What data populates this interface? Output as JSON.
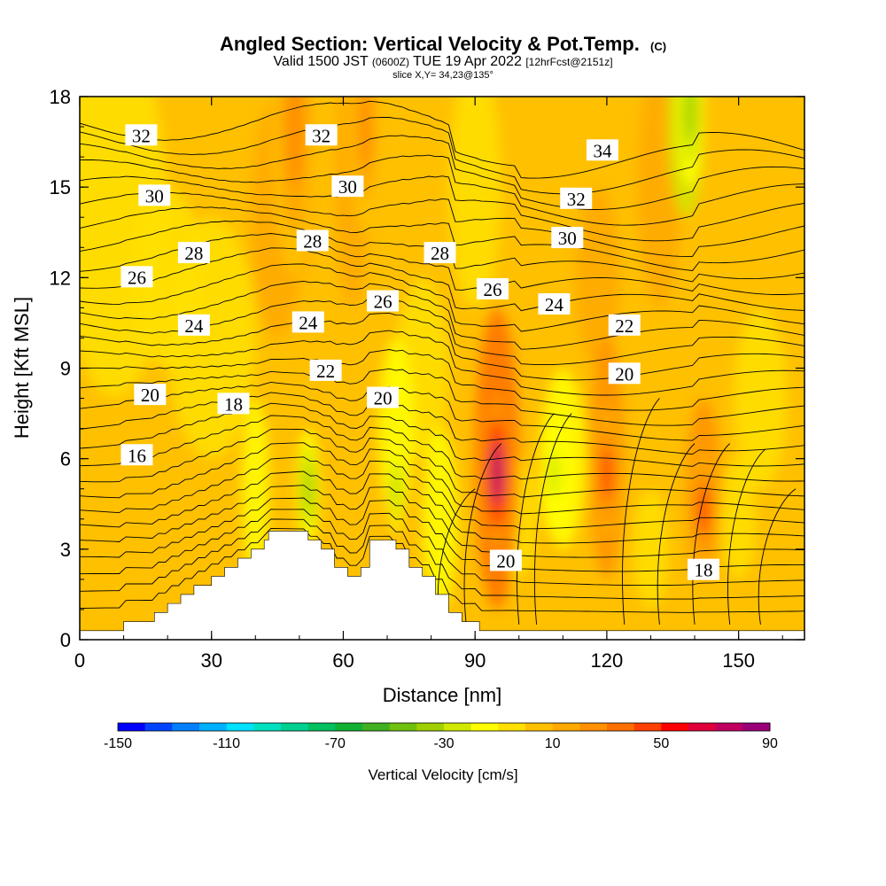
{
  "title": {
    "main": "Angled Section: Vertical Velocity & Pot.Temp.",
    "main_unit": "(C)",
    "valid_a": "Valid 1500 JST",
    "valid_b": "(0600Z)",
    "valid_c": "TUE 19 Apr 2022",
    "valid_d": "[12hrFcst@2151z]",
    "slice": "slice X,Y= 34,23@135°"
  },
  "chart_data": {
    "type": "heatmap",
    "xlabel": "Distance [nm]",
    "ylabel": "Height [Kft MSL]",
    "xlim": [
      0,
      165
    ],
    "ylim": [
      0,
      18
    ],
    "xticks": [
      "0",
      "30",
      "60",
      "90",
      "120",
      "150"
    ],
    "yticks": [
      "0",
      "3",
      "6",
      "9",
      "12",
      "15",
      "18"
    ],
    "colorbar": {
      "label": "Vertical Velocity [cm/s]",
      "range": [
        -150,
        90
      ],
      "step": 10,
      "tick_labels": [
        "-150",
        "-110",
        "-70",
        "-30",
        "10",
        "50",
        "90"
      ],
      "colors": [
        "#0000ff",
        "#0044ff",
        "#0080ff",
        "#00b0ff",
        "#00e0ff",
        "#00e0c0",
        "#00d090",
        "#00c060",
        "#10b030",
        "#40b020",
        "#70c010",
        "#a0d000",
        "#d0e800",
        "#ffff00",
        "#ffe000",
        "#ffc000",
        "#ffa800",
        "#ff9000",
        "#ff7000",
        "#ff4000",
        "#ff0000",
        "#e0003c",
        "#c00060",
        "#9a0078",
        "#7a0090"
      ]
    },
    "velocity_cores": [
      {
        "x": 95,
        "y": 5.5,
        "w": 3.5,
        "h": 2.6,
        "value": 70
      },
      {
        "x": 120,
        "y": 5.5,
        "w": 3.0,
        "h": 2.2,
        "value": 45
      },
      {
        "x": 142,
        "y": 4.3,
        "w": 3.0,
        "h": 2.0,
        "value": 45
      },
      {
        "x": 49,
        "y": 17.0,
        "w": 5.0,
        "h": 5.0,
        "value": 20
      },
      {
        "x": 65,
        "y": 17.0,
        "w": 3.5,
        "h": 3.5,
        "value": 20
      },
      {
        "x": 52,
        "y": 5.0,
        "w": 2.5,
        "h": 2.0,
        "value": -35
      },
      {
        "x": 72,
        "y": 5.0,
        "w": 1.5,
        "h": 1.5,
        "value": -40
      },
      {
        "x": 139,
        "y": 17.5,
        "w": 3.0,
        "h": 2.5,
        "value": -35
      },
      {
        "x": 108,
        "y": 5.5,
        "w": 3.0,
        "h": 2.0,
        "value": -30
      }
    ],
    "terrain": [
      [
        0,
        0.3
      ],
      [
        10,
        0.3
      ],
      [
        10,
        0.6
      ],
      [
        17,
        0.6
      ],
      [
        17,
        0.9
      ],
      [
        20,
        0.9
      ],
      [
        20,
        1.2
      ],
      [
        23,
        1.2
      ],
      [
        23,
        1.5
      ],
      [
        26,
        1.5
      ],
      [
        26,
        1.8
      ],
      [
        30,
        1.8
      ],
      [
        30,
        2.1
      ],
      [
        33,
        2.1
      ],
      [
        33,
        2.4
      ],
      [
        36,
        2.4
      ],
      [
        36,
        2.7
      ],
      [
        39,
        2.7
      ],
      [
        39,
        3.0
      ],
      [
        42,
        3.0
      ],
      [
        42,
        3.3
      ],
      [
        43,
        3.3
      ],
      [
        43,
        3.6
      ],
      [
        52,
        3.6
      ],
      [
        52,
        3.3
      ],
      [
        55,
        3.3
      ],
      [
        55,
        3.0
      ],
      [
        58,
        3.0
      ],
      [
        58,
        2.4
      ],
      [
        61,
        2.4
      ],
      [
        61,
        2.1
      ],
      [
        64,
        2.1
      ],
      [
        64,
        2.4
      ],
      [
        66,
        2.4
      ],
      [
        66,
        3.3
      ],
      [
        72,
        3.3
      ],
      [
        72,
        3.0
      ],
      [
        75,
        3.0
      ],
      [
        75,
        2.4
      ],
      [
        78,
        2.4
      ],
      [
        78,
        2.1
      ],
      [
        81,
        2.1
      ],
      [
        81,
        1.5
      ],
      [
        84,
        1.5
      ],
      [
        84,
        0.9
      ],
      [
        87,
        0.9
      ],
      [
        87,
        0.6
      ],
      [
        91,
        0.6
      ],
      [
        91,
        0.3
      ],
      [
        165,
        0.3
      ]
    ],
    "isentropes": [
      {
        "theta": 16,
        "y0": 5.6,
        "label": {
          "x": 13,
          "y": 6.1
        }
      },
      {
        "theta": 18,
        "y0": 7.0,
        "label": {
          "x": 35,
          "y": 7.8
        }
      },
      {
        "theta": 20,
        "y0": 8.3,
        "label": {
          "x": 16,
          "y": 8.1
        }
      },
      {
        "theta": 20,
        "label": {
          "x": 69,
          "y": 8.0
        }
      },
      {
        "theta": 20,
        "label": {
          "x": 124,
          "y": 8.8
        }
      },
      {
        "theta": 20,
        "label": {
          "x": 97,
          "y": 2.6
        }
      },
      {
        "theta": 18,
        "label": {
          "x": 142,
          "y": 2.3
        }
      },
      {
        "theta": 22,
        "y0": 9.6,
        "label": {
          "x": 56,
          "y": 8.9
        }
      },
      {
        "theta": 22,
        "label": {
          "x": 124,
          "y": 10.4
        }
      },
      {
        "theta": 24,
        "y0": 10.8,
        "label": {
          "x": 26,
          "y": 10.4
        }
      },
      {
        "theta": 24,
        "label": {
          "x": 52,
          "y": 10.5
        }
      },
      {
        "theta": 24,
        "label": {
          "x": 108,
          "y": 11.1
        }
      },
      {
        "theta": 26,
        "y0": 12.1,
        "label": {
          "x": 13,
          "y": 12.0
        }
      },
      {
        "theta": 26,
        "label": {
          "x": 69,
          "y": 11.2
        }
      },
      {
        "theta": 26,
        "label": {
          "x": 94,
          "y": 11.6
        }
      },
      {
        "theta": 28,
        "y0": 13.2,
        "label": {
          "x": 26,
          "y": 12.8
        }
      },
      {
        "theta": 28,
        "label": {
          "x": 53,
          "y": 13.2
        }
      },
      {
        "theta": 28,
        "label": {
          "x": 82,
          "y": 12.8
        }
      },
      {
        "theta": 30,
        "y0": 14.5,
        "label": {
          "x": 17,
          "y": 14.7
        }
      },
      {
        "theta": 30,
        "label": {
          "x": 61,
          "y": 15.0
        }
      },
      {
        "theta": 30,
        "label": {
          "x": 111,
          "y": 13.3
        }
      },
      {
        "theta": 32,
        "y0": 15.9,
        "label": {
          "x": 14,
          "y": 16.7
        }
      },
      {
        "theta": 32,
        "label": {
          "x": 55,
          "y": 16.7
        }
      },
      {
        "theta": 32,
        "label": {
          "x": 113,
          "y": 14.6
        }
      },
      {
        "theta": 34,
        "y0": 17.2,
        "label": {
          "x": 119,
          "y": 16.2
        }
      }
    ],
    "isentrope_count": 30,
    "isentrope_base": 0.8,
    "isentrope_spacing": 0.56
  }
}
